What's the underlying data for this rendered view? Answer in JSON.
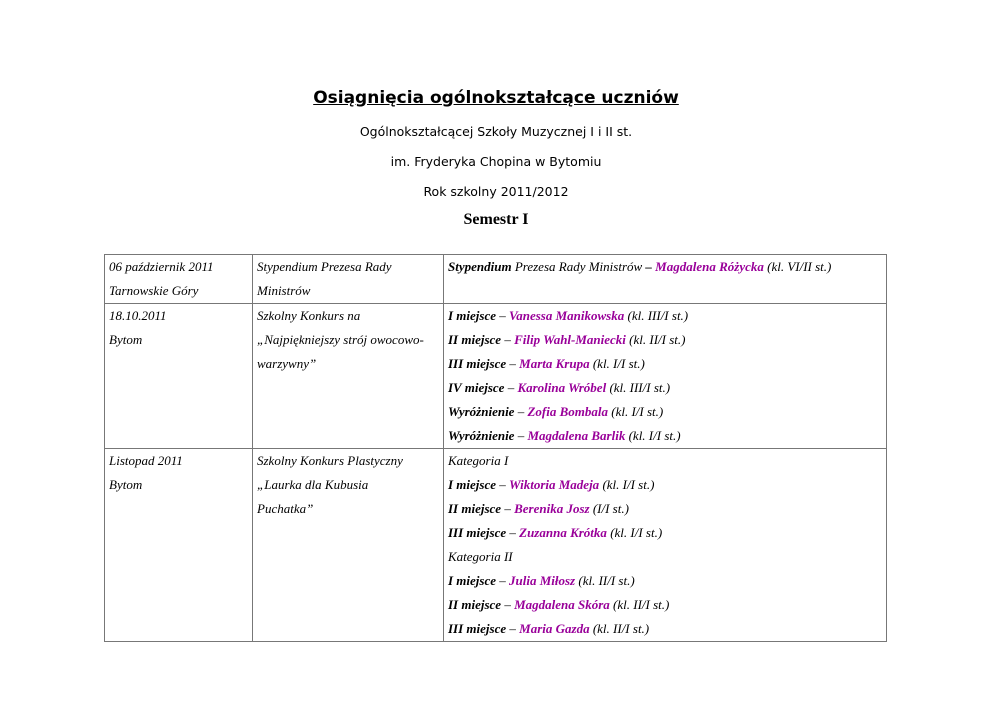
{
  "header": {
    "title": "Osiągnięcia ogólnokształcące uczniów",
    "subtitle_lines": [
      "Ogólnokształcącej Szkoły Muzycznej I i II st.",
      "im. Fryderyka Chopina w Bytomiu",
      "Rok szkolny 2011/2012"
    ],
    "semester": "Semestr I"
  },
  "colors": {
    "name": "#990099",
    "border": "#777777"
  },
  "rows": [
    {
      "col1": [
        "06 październik 2011",
        "Tarnowskie Góry"
      ],
      "col2": [
        "Stypendium Prezesa Rady",
        "Ministrów"
      ],
      "col3": [
        [
          {
            "t": "Stypendium",
            "s": "b"
          },
          {
            "t": " Prezesa Rady Ministrów ",
            "s": ""
          },
          {
            "t": "– ",
            "s": "b"
          },
          {
            "t": "Magdalena Różycka",
            "s": "n"
          },
          {
            "t": " (kl. VI/II st.)",
            "s": ""
          }
        ]
      ]
    },
    {
      "col1": [
        "18.10.2011",
        "Bytom"
      ],
      "col2": [
        "Szkolny Konkurs na",
        "„Najpiękniejszy strój owocowo-",
        "warzywny”"
      ],
      "col3": [
        [
          {
            "t": "I miejsce",
            "s": "b"
          },
          {
            "t": " – ",
            "s": ""
          },
          {
            "t": "Vanessa Manikowska",
            "s": "n"
          },
          {
            "t": " (kl. III/I st.)",
            "s": ""
          }
        ],
        [
          {
            "t": "II miejsce",
            "s": "b"
          },
          {
            "t": " – ",
            "s": ""
          },
          {
            "t": "Filip Wahl-Maniecki",
            "s": "n"
          },
          {
            "t": " (kl. II/I st.)",
            "s": ""
          }
        ],
        [
          {
            "t": "III miejsce",
            "s": "b"
          },
          {
            "t": " – ",
            "s": ""
          },
          {
            "t": "Marta Krupa",
            "s": "n"
          },
          {
            "t": " (kl. I/I st.)",
            "s": ""
          }
        ],
        [
          {
            "t": "IV miejsce",
            "s": "b"
          },
          {
            "t": " – ",
            "s": ""
          },
          {
            "t": "Karolina Wróbel",
            "s": "n"
          },
          {
            "t": " (kl. III/I st.)",
            "s": ""
          }
        ],
        [
          {
            "t": "Wyróżnienie",
            "s": "b"
          },
          {
            "t": " – ",
            "s": ""
          },
          {
            "t": "Zofia Bombala",
            "s": "n"
          },
          {
            "t": " (kl. I/I st.)",
            "s": ""
          }
        ],
        [
          {
            "t": "Wyróżnienie",
            "s": "b"
          },
          {
            "t": " – ",
            "s": ""
          },
          {
            "t": "Magdalena Barlik",
            "s": "n"
          },
          {
            "t": " (kl. I/I st.)",
            "s": ""
          }
        ]
      ]
    },
    {
      "col1": [
        "Listopad 2011",
        "Bytom"
      ],
      "col2": [
        "Szkolny Konkurs Plastyczny",
        "„Laurka dla Kubusia",
        "Puchatka”"
      ],
      "col3": [
        [
          {
            "t": "Kategoria I",
            "s": ""
          }
        ],
        [
          {
            "t": "I miejsce",
            "s": "b"
          },
          {
            "t": " – ",
            "s": ""
          },
          {
            "t": "Wiktoria Madeja",
            "s": "n"
          },
          {
            "t": " (kl. I/I st.)",
            "s": ""
          }
        ],
        [
          {
            "t": "II miejsce",
            "s": "b"
          },
          {
            "t": " – ",
            "s": ""
          },
          {
            "t": "Berenika Josz",
            "s": "n"
          },
          {
            "t": " (I/I st.)",
            "s": ""
          }
        ],
        [
          {
            "t": "III miejsce",
            "s": "b"
          },
          {
            "t": " – ",
            "s": ""
          },
          {
            "t": "Zuzanna Krótka",
            "s": "n"
          },
          {
            "t": " (kl. I/I st.)",
            "s": ""
          }
        ],
        [
          {
            "t": "Kategoria II",
            "s": ""
          }
        ],
        [
          {
            "t": "I miejsce",
            "s": "b"
          },
          {
            "t": " – ",
            "s": ""
          },
          {
            "t": "Julia Miłosz",
            "s": "n"
          },
          {
            "t": " (kl. II/I st.)",
            "s": ""
          }
        ],
        [
          {
            "t": "II miejsce",
            "s": "b"
          },
          {
            "t": " – ",
            "s": ""
          },
          {
            "t": "Magdalena Skóra",
            "s": "n"
          },
          {
            "t": " (kl. II/I st.)",
            "s": ""
          }
        ],
        [
          {
            "t": "III miejsce",
            "s": "b"
          },
          {
            "t": " – ",
            "s": ""
          },
          {
            "t": "Maria Gazda",
            "s": "n"
          },
          {
            "t": " (kl. II/I st.)",
            "s": ""
          }
        ]
      ]
    }
  ]
}
